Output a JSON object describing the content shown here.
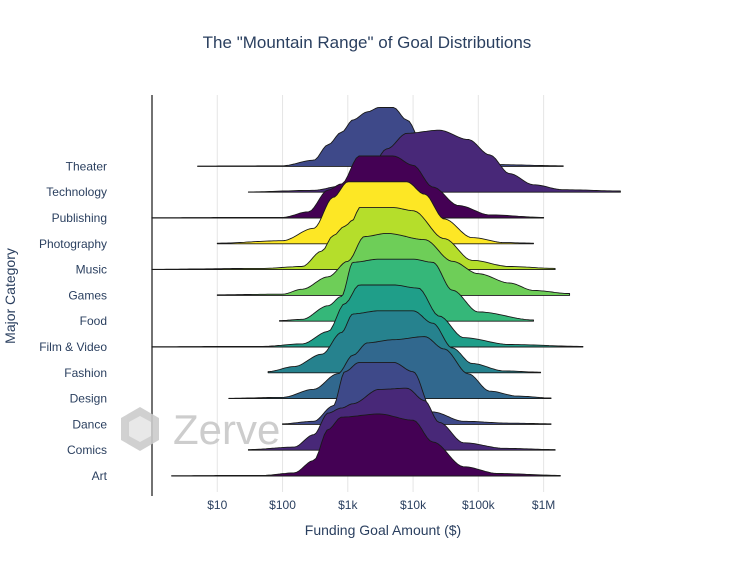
{
  "chart_data": {
    "type": "ridgeline",
    "title": "The \"Mountain Range\" of Goal Distributions",
    "xlabel": "Funding Goal Amount ($)",
    "ylabel": "Major Category",
    "x_scale": "log",
    "xlim": [
      1,
      30000000
    ],
    "x_ticks": [
      {
        "value": 10,
        "label": "$10"
      },
      {
        "value": 100,
        "label": "$100"
      },
      {
        "value": 1000,
        "label": "$1k"
      },
      {
        "value": 10000,
        "label": "$10k"
      },
      {
        "value": 100000,
        "label": "$100k"
      },
      {
        "value": 1000000,
        "label": "$1M"
      }
    ],
    "grid_x": true,
    "series": [
      {
        "name": "Art",
        "color": "#440154",
        "min": 2,
        "max": 1800000,
        "shape": [
          [
            2,
            0.005
          ],
          [
            50,
            0.01
          ],
          [
            150,
            0.05
          ],
          [
            300,
            0.25
          ],
          [
            500,
            0.75
          ],
          [
            800,
            0.95
          ],
          [
            3000,
            1.0
          ],
          [
            10000,
            0.9
          ],
          [
            20000,
            0.55
          ],
          [
            60000,
            0.15
          ],
          [
            200000,
            0.04
          ],
          [
            1800000,
            0.01
          ]
        ]
      },
      {
        "name": "Comics",
        "color": "#482878",
        "min": 30,
        "max": 1500000,
        "shape": [
          [
            30,
            0.01
          ],
          [
            150,
            0.05
          ],
          [
            300,
            0.25
          ],
          [
            500,
            0.6
          ],
          [
            800,
            0.68
          ],
          [
            1200,
            0.75
          ],
          [
            3000,
            0.98
          ],
          [
            8000,
            1.0
          ],
          [
            15000,
            0.8
          ],
          [
            25000,
            0.45
          ],
          [
            60000,
            0.12
          ],
          [
            250000,
            0.03
          ],
          [
            1500000,
            0.01
          ]
        ]
      },
      {
        "name": "Dance",
        "color": "#3e4989",
        "min": 100,
        "max": 1300000,
        "shape": [
          [
            100,
            0.01
          ],
          [
            300,
            0.05
          ],
          [
            600,
            0.3
          ],
          [
            900,
            0.85
          ],
          [
            1500,
            1.0
          ],
          [
            5000,
            1.0
          ],
          [
            10000,
            0.85
          ],
          [
            20000,
            0.2
          ],
          [
            60000,
            0.05
          ],
          [
            300000,
            0.02
          ],
          [
            1300000,
            0.01
          ]
        ]
      },
      {
        "name": "Design",
        "color": "#31688e",
        "min": 15,
        "max": 1300000,
        "shape": [
          [
            15,
            0.005
          ],
          [
            100,
            0.02
          ],
          [
            300,
            0.15
          ],
          [
            700,
            0.4
          ],
          [
            1200,
            0.7
          ],
          [
            2000,
            0.9
          ],
          [
            5000,
            0.95
          ],
          [
            15000,
            1.0
          ],
          [
            30000,
            0.8
          ],
          [
            70000,
            0.4
          ],
          [
            150000,
            0.12
          ],
          [
            400000,
            0.04
          ],
          [
            1300000,
            0.01
          ]
        ]
      },
      {
        "name": "Fashion",
        "color": "#26828e",
        "min": 60,
        "max": 900000,
        "shape": [
          [
            60,
            0.02
          ],
          [
            150,
            0.1
          ],
          [
            400,
            0.3
          ],
          [
            800,
            0.65
          ],
          [
            1200,
            0.95
          ],
          [
            3000,
            1.0
          ],
          [
            10000,
            1.0
          ],
          [
            20000,
            0.8
          ],
          [
            40000,
            0.4
          ],
          [
            80000,
            0.15
          ],
          [
            250000,
            0.03
          ],
          [
            900000,
            0.01
          ]
        ]
      },
      {
        "name": "Film & Video",
        "color": "#1f9e89",
        "min": 1,
        "max": 4000000,
        "shape": [
          [
            1,
            0.005
          ],
          [
            50,
            0.01
          ],
          [
            200,
            0.05
          ],
          [
            500,
            0.25
          ],
          [
            900,
            0.7
          ],
          [
            1500,
            1.0
          ],
          [
            5000,
            1.0
          ],
          [
            12000,
            0.95
          ],
          [
            25000,
            0.5
          ],
          [
            60000,
            0.15
          ],
          [
            300000,
            0.04
          ],
          [
            4000000,
            0.01
          ]
        ]
      },
      {
        "name": "Food",
        "color": "#35b779",
        "min": 90,
        "max": 700000,
        "shape": [
          [
            90,
            0.01
          ],
          [
            200,
            0.03
          ],
          [
            500,
            0.25
          ],
          [
            800,
            0.4
          ],
          [
            1200,
            0.95
          ],
          [
            3000,
            1.0
          ],
          [
            10000,
            1.0
          ],
          [
            20000,
            0.95
          ],
          [
            40000,
            0.5
          ],
          [
            100000,
            0.15
          ],
          [
            700000,
            0.02
          ]
        ]
      },
      {
        "name": "Games",
        "color": "#6ece58",
        "min": 10,
        "max": 2500000,
        "shape": [
          [
            10,
            0.01
          ],
          [
            100,
            0.02
          ],
          [
            200,
            0.1
          ],
          [
            500,
            0.3
          ],
          [
            1000,
            0.55
          ],
          [
            1800,
            0.95
          ],
          [
            4000,
            1.0
          ],
          [
            15000,
            0.9
          ],
          [
            40000,
            0.55
          ],
          [
            100000,
            0.35
          ],
          [
            300000,
            0.2
          ],
          [
            700000,
            0.08
          ],
          [
            2500000,
            0.03
          ]
        ]
      },
      {
        "name": "Music",
        "color": "#b5de2b",
        "min": 1,
        "max": 1500000,
        "shape": [
          [
            1,
            0.005
          ],
          [
            50,
            0.02
          ],
          [
            200,
            0.05
          ],
          [
            400,
            0.3
          ],
          [
            600,
            0.55
          ],
          [
            900,
            0.7
          ],
          [
            1200,
            0.8
          ],
          [
            1500,
            1.0
          ],
          [
            5000,
            1.0
          ],
          [
            10000,
            0.95
          ],
          [
            30000,
            0.5
          ],
          [
            80000,
            0.15
          ],
          [
            300000,
            0.05
          ],
          [
            1500000,
            0.02
          ]
        ]
      },
      {
        "name": "Photography",
        "color": "#fde725",
        "min": 10,
        "max": 700000,
        "shape": [
          [
            10,
            0.01
          ],
          [
            100,
            0.05
          ],
          [
            300,
            0.25
          ],
          [
            600,
            0.75
          ],
          [
            1000,
            1.0
          ],
          [
            8000,
            1.0
          ],
          [
            15000,
            0.8
          ],
          [
            30000,
            0.4
          ],
          [
            80000,
            0.1
          ],
          [
            250000,
            0.02
          ],
          [
            700000,
            0.01
          ]
        ]
      },
      {
        "name": "Publishing",
        "color": "#440154",
        "min": 1,
        "max": 1000000,
        "shape": [
          [
            1,
            0.005
          ],
          [
            100,
            0.01
          ],
          [
            250,
            0.1
          ],
          [
            500,
            0.45
          ],
          [
            800,
            0.55
          ],
          [
            1500,
            1.0
          ],
          [
            5000,
            1.0
          ],
          [
            10000,
            0.85
          ],
          [
            20000,
            0.5
          ],
          [
            50000,
            0.2
          ],
          [
            150000,
            0.05
          ],
          [
            1000000,
            0.01
          ]
        ]
      },
      {
        "name": "Technology",
        "color": "#482878",
        "min": 30,
        "max": 15000000,
        "shape": [
          [
            30,
            0.005
          ],
          [
            300,
            0.03
          ],
          [
            800,
            0.1
          ],
          [
            2000,
            0.3
          ],
          [
            4000,
            0.7
          ],
          [
            8000,
            0.95
          ],
          [
            25000,
            1.0
          ],
          [
            70000,
            0.85
          ],
          [
            150000,
            0.6
          ],
          [
            300000,
            0.3
          ],
          [
            700000,
            0.12
          ],
          [
            2000000,
            0.04
          ],
          [
            15000000,
            0.02
          ]
        ]
      },
      {
        "name": "Theater",
        "color": "#3e4989",
        "min": 5,
        "max": 2000000,
        "shape": [
          [
            5,
            0.005
          ],
          [
            100,
            0.01
          ],
          [
            300,
            0.1
          ],
          [
            500,
            0.35
          ],
          [
            800,
            0.55
          ],
          [
            1200,
            0.75
          ],
          [
            2000,
            0.88
          ],
          [
            3000,
            0.95
          ],
          [
            5000,
            0.95
          ],
          [
            8000,
            0.75
          ],
          [
            15000,
            0.3
          ],
          [
            40000,
            0.08
          ],
          [
            150000,
            0.03
          ],
          [
            2000000,
            0.01
          ]
        ]
      }
    ]
  },
  "watermark": {
    "text": "Zerve",
    "icon": "hexagon-icon"
  }
}
